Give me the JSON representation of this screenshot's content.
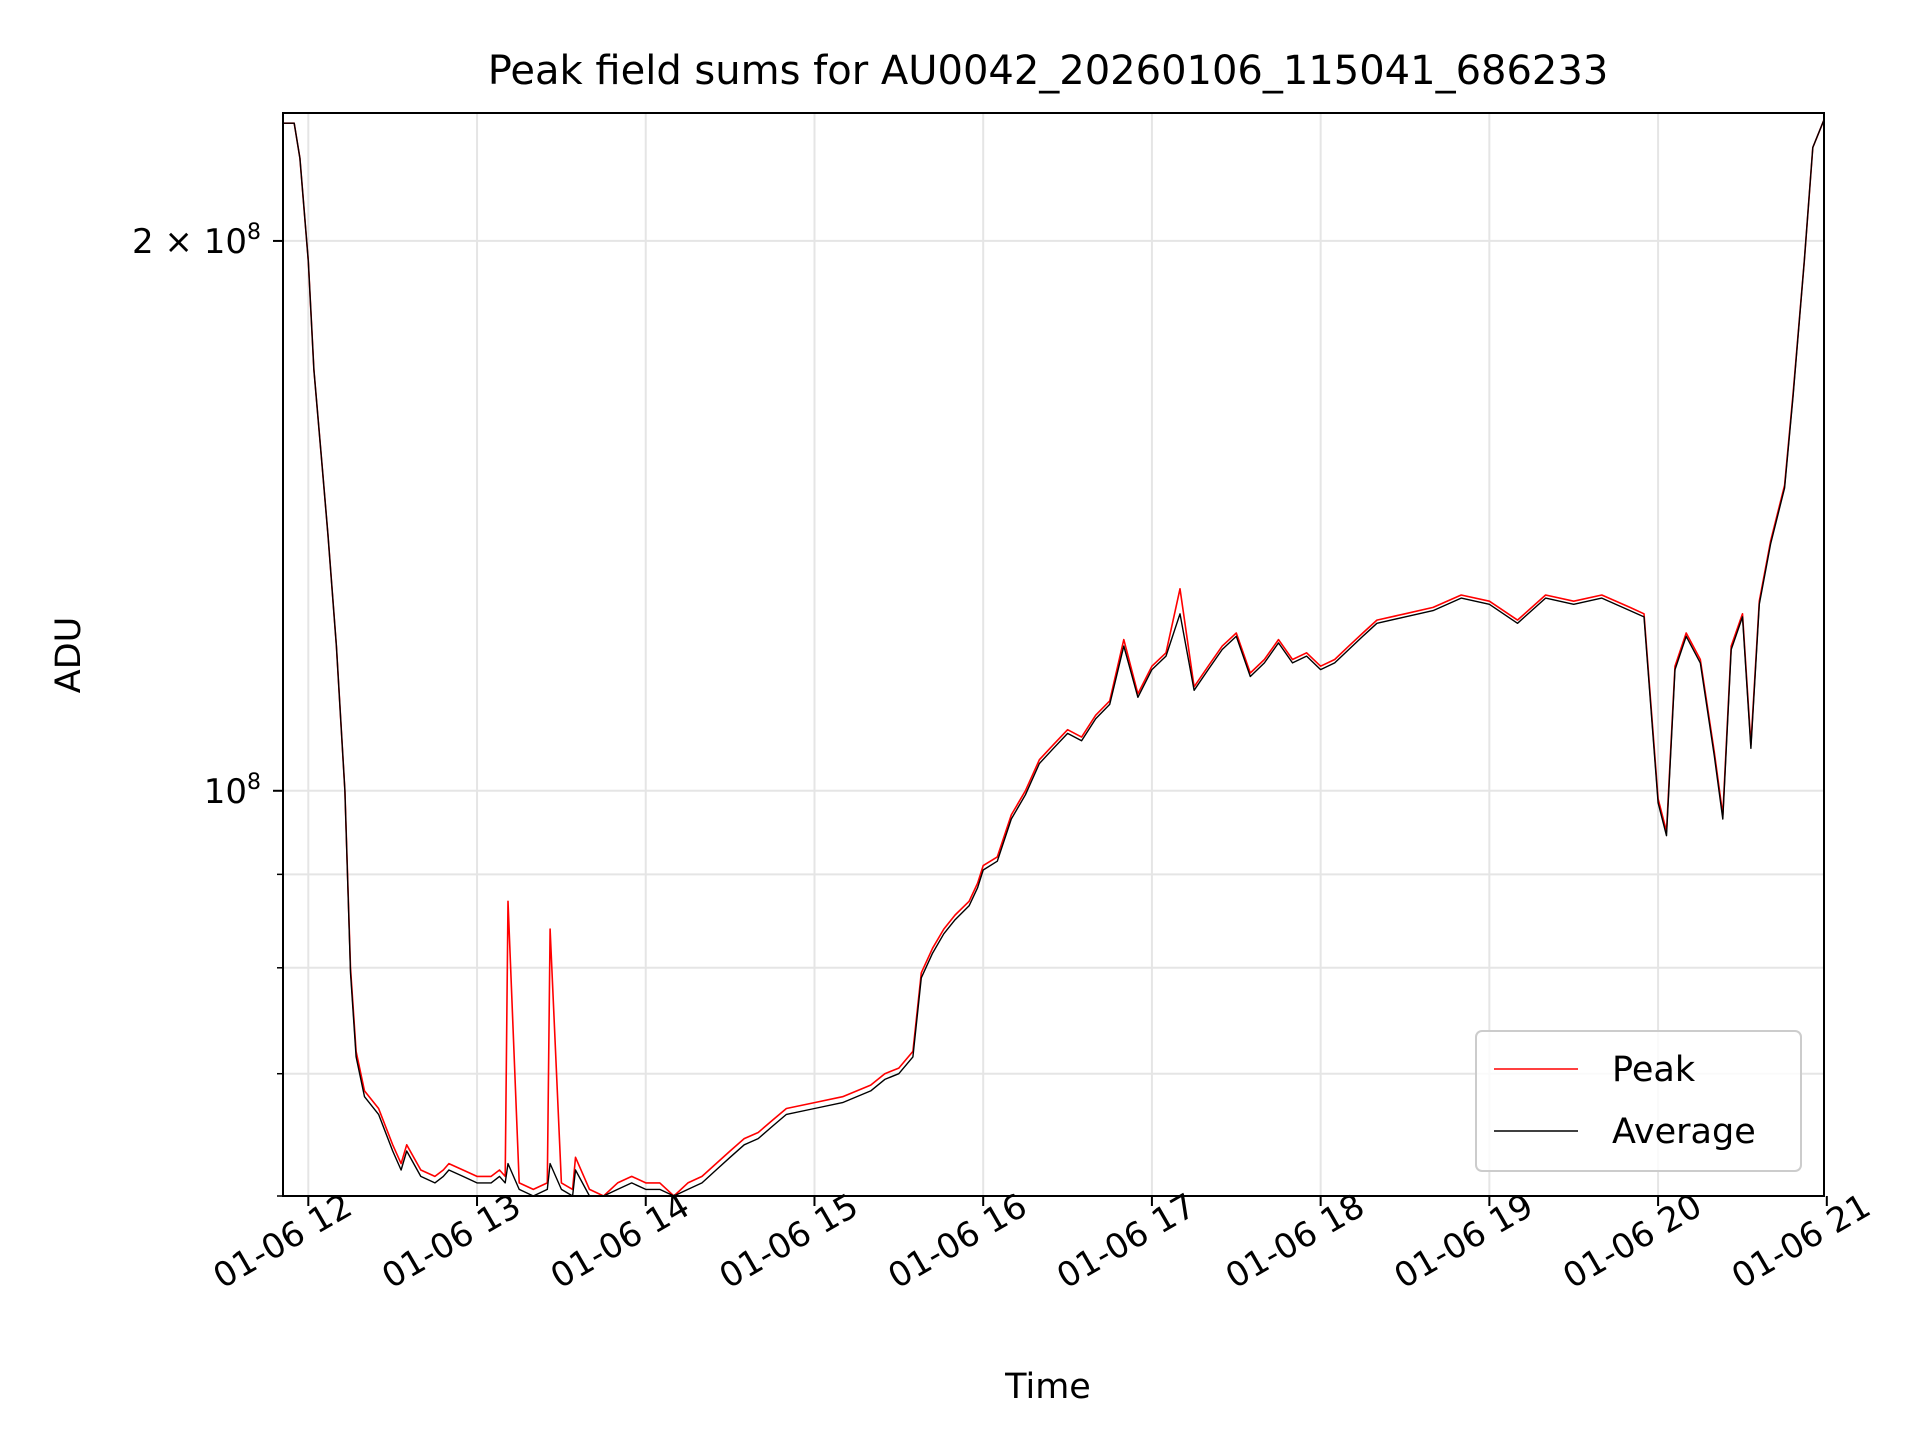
{
  "colors": {
    "peak": "#ff0000",
    "average": "#000000",
    "grid": "#e5e5e5",
    "axes": "#000000",
    "legend_border": "#cccccc"
  },
  "chart_data": {
    "type": "line",
    "title": "Peak field sums for AU0042_20260106_115041_686233",
    "xlabel": "Time",
    "ylabel": "ADU",
    "yscale": "log",
    "grid": true,
    "legend_position": "lower-right",
    "x_range": [
      "01-06 11:51",
      "01-06 20:59"
    ],
    "ylim": [
      60000000,
      235000000
    ],
    "x_ticks": [
      {
        "time": "01-06 12:00",
        "label": "01-06 12"
      },
      {
        "time": "01-06 13:00",
        "label": "01-06 13"
      },
      {
        "time": "01-06 14:00",
        "label": "01-06 14"
      },
      {
        "time": "01-06 15:00",
        "label": "01-06 15"
      },
      {
        "time": "01-06 16:00",
        "label": "01-06 16"
      },
      {
        "time": "01-06 17:00",
        "label": "01-06 17"
      },
      {
        "time": "01-06 18:00",
        "label": "01-06 18"
      },
      {
        "time": "01-06 19:00",
        "label": "01-06 19"
      },
      {
        "time": "01-06 20:00",
        "label": "01-06 20"
      },
      {
        "time": "01-06 21:00",
        "label": "01-06 21"
      }
    ],
    "y_major_ticks": [
      {
        "value": 100000000,
        "base": "10",
        "exp": "8",
        "coef": ""
      },
      {
        "value": 200000000,
        "base": "10",
        "exp": "8",
        "coef": "2 × "
      }
    ],
    "y_minor_ticks": [
      60000000,
      70000000,
      80000000,
      90000000
    ],
    "series": [
      {
        "name": "Peak",
        "color": "#ff0000",
        "x": [
          "01-06 11:51",
          "01-06 11:55",
          "01-06 11:57",
          "01-06 12:00",
          "01-06 12:02",
          "01-06 12:05",
          "01-06 12:07",
          "01-06 12:10",
          "01-06 12:13",
          "01-06 12:15",
          "01-06 12:17",
          "01-06 12:20",
          "01-06 12:25",
          "01-06 12:30",
          "01-06 12:33",
          "01-06 12:35",
          "01-06 12:40",
          "01-06 12:45",
          "01-06 12:48",
          "01-06 12:50",
          "01-06 12:55",
          "01-06 13:00",
          "01-06 13:05",
          "01-06 13:08",
          "01-06 13:10",
          "01-06 13:11",
          "01-06 13:15",
          "01-06 13:20",
          "01-06 13:25",
          "01-06 13:26",
          "01-06 13:30",
          "01-06 13:34",
          "01-06 13:35",
          "01-06 13:40",
          "01-06 13:45",
          "01-06 13:50",
          "01-06 13:55",
          "01-06 14:00",
          "01-06 14:05",
          "01-06 14:10",
          "01-06 14:15",
          "01-06 14:20",
          "01-06 14:25",
          "01-06 14:30",
          "01-06 14:35",
          "01-06 14:40",
          "01-06 14:45",
          "01-06 14:50",
          "01-06 15:00",
          "01-06 15:10",
          "01-06 15:20",
          "01-06 15:25",
          "01-06 15:30",
          "01-06 15:35",
          "01-06 15:38",
          "01-06 15:42",
          "01-06 15:46",
          "01-06 15:50",
          "01-06 15:55",
          "01-06 15:58",
          "01-06 16:00",
          "01-06 16:05",
          "01-06 16:10",
          "01-06 16:15",
          "01-06 16:20",
          "01-06 16:25",
          "01-06 16:30",
          "01-06 16:35",
          "01-06 16:40",
          "01-06 16:45",
          "01-06 16:50",
          "01-06 16:55",
          "01-06 17:00",
          "01-06 17:05",
          "01-06 17:10",
          "01-06 17:15",
          "01-06 17:20",
          "01-06 17:25",
          "01-06 17:30",
          "01-06 17:35",
          "01-06 17:40",
          "01-06 17:45",
          "01-06 17:50",
          "01-06 17:55",
          "01-06 18:00",
          "01-06 18:05",
          "01-06 18:10",
          "01-06 18:15",
          "01-06 18:20",
          "01-06 18:30",
          "01-06 18:40",
          "01-06 18:50",
          "01-06 19:00",
          "01-06 19:10",
          "01-06 19:20",
          "01-06 19:30",
          "01-06 19:40",
          "01-06 19:50",
          "01-06 19:55",
          "01-06 20:00",
          "01-06 20:03",
          "01-06 20:06",
          "01-06 20:10",
          "01-06 20:15",
          "01-06 20:20",
          "01-06 20:23",
          "01-06 20:26",
          "01-06 20:30",
          "01-06 20:33",
          "01-06 20:36",
          "01-06 20:40",
          "01-06 20:45",
          "01-06 20:48",
          "01-06 20:52",
          "01-06 20:55",
          "01-06 20:59"
        ],
        "values": [
          232000000,
          232000000,
          222000000,
          195000000,
          170000000,
          150000000,
          138000000,
          120000000,
          100000000,
          80000000,
          72000000,
          68500000,
          67000000,
          64000000,
          62500000,
          64000000,
          62000000,
          61500000,
          62000000,
          62500000,
          62000000,
          61500000,
          61500000,
          62000000,
          61500000,
          87000000,
          61000000,
          60500000,
          61000000,
          84000000,
          61000000,
          60500000,
          63000000,
          60500000,
          59500000,
          61000000,
          61500000,
          61000000,
          61000000,
          60000000,
          61000000,
          61500000,
          62500000,
          63500000,
          64500000,
          65000000,
          66000000,
          67000000,
          67500000,
          68000000,
          69000000,
          70000000,
          70500000,
          72000000,
          79500000,
          82000000,
          84000000,
          85500000,
          87000000,
          89000000,
          91000000,
          92000000,
          97000000,
          100000000,
          104000000,
          106000000,
          108000000,
          107000000,
          110000000,
          112000000,
          121000000,
          113000000,
          117000000,
          119000000,
          129000000,
          114000000,
          117000000,
          120000000,
          122000000,
          116000000,
          118000000,
          121000000,
          118000000,
          119000000,
          117000000,
          118000000,
          120000000,
          122000000,
          124000000,
          125000000,
          126000000,
          128000000,
          127000000,
          124000000,
          128000000,
          127000000,
          128000000,
          126000000,
          125000000,
          99000000,
          95000000,
          117000000,
          122000000,
          118000000,
          105000000,
          97000000,
          120000000,
          125000000,
          106000000,
          127000000,
          137000000,
          147000000,
          165000000,
          195000000,
          225000000,
          233000000
        ]
      },
      {
        "name": "Average",
        "color": "#000000",
        "x": [
          "01-06 11:51",
          "01-06 11:55",
          "01-06 11:57",
          "01-06 12:00",
          "01-06 12:02",
          "01-06 12:05",
          "01-06 12:07",
          "01-06 12:10",
          "01-06 12:13",
          "01-06 12:15",
          "01-06 12:17",
          "01-06 12:20",
          "01-06 12:25",
          "01-06 12:30",
          "01-06 12:33",
          "01-06 12:35",
          "01-06 12:40",
          "01-06 12:45",
          "01-06 12:48",
          "01-06 12:50",
          "01-06 12:55",
          "01-06 13:00",
          "01-06 13:05",
          "01-06 13:08",
          "01-06 13:10",
          "01-06 13:11",
          "01-06 13:15",
          "01-06 13:20",
          "01-06 13:25",
          "01-06 13:26",
          "01-06 13:30",
          "01-06 13:34",
          "01-06 13:35",
          "01-06 13:40",
          "01-06 13:45",
          "01-06 13:50",
          "01-06 13:55",
          "01-06 14:00",
          "01-06 14:05",
          "01-06 14:10",
          "01-06 14:15",
          "01-06 14:20",
          "01-06 14:25",
          "01-06 14:30",
          "01-06 14:35",
          "01-06 14:40",
          "01-06 14:45",
          "01-06 14:50",
          "01-06 15:00",
          "01-06 15:10",
          "01-06 15:20",
          "01-06 15:25",
          "01-06 15:30",
          "01-06 15:35",
          "01-06 15:38",
          "01-06 15:42",
          "01-06 15:46",
          "01-06 15:50",
          "01-06 15:55",
          "01-06 15:58",
          "01-06 16:00",
          "01-06 16:05",
          "01-06 16:10",
          "01-06 16:15",
          "01-06 16:20",
          "01-06 16:25",
          "01-06 16:30",
          "01-06 16:35",
          "01-06 16:40",
          "01-06 16:45",
          "01-06 16:50",
          "01-06 16:55",
          "01-06 17:00",
          "01-06 17:05",
          "01-06 17:10",
          "01-06 17:15",
          "01-06 17:20",
          "01-06 17:25",
          "01-06 17:30",
          "01-06 17:35",
          "01-06 17:40",
          "01-06 17:45",
          "01-06 17:50",
          "01-06 17:55",
          "01-06 18:00",
          "01-06 18:05",
          "01-06 18:10",
          "01-06 18:15",
          "01-06 18:20",
          "01-06 18:30",
          "01-06 18:40",
          "01-06 18:50",
          "01-06 19:00",
          "01-06 19:10",
          "01-06 19:20",
          "01-06 19:30",
          "01-06 19:40",
          "01-06 19:50",
          "01-06 19:55",
          "01-06 20:00",
          "01-06 20:03",
          "01-06 20:06",
          "01-06 20:10",
          "01-06 20:15",
          "01-06 20:20",
          "01-06 20:23",
          "01-06 20:26",
          "01-06 20:30",
          "01-06 20:33",
          "01-06 20:36",
          "01-06 20:40",
          "01-06 20:45",
          "01-06 20:48",
          "01-06 20:52",
          "01-06 20:55",
          "01-06 20:59"
        ],
        "values": [
          232000000,
          232000000,
          222000000,
          195000000,
          170000000,
          150000000,
          138000000,
          120000000,
          100000000,
          79500000,
          71500000,
          68000000,
          66500000,
          63500000,
          62000000,
          63500000,
          61500000,
          61000000,
          61500000,
          62000000,
          61500000,
          61000000,
          61000000,
          61500000,
          61000000,
          62500000,
          60500000,
          60000000,
          60500000,
          62500000,
          60500000,
          60000000,
          62000000,
          60000000,
          59000000,
          60500000,
          61000000,
          60500000,
          60500000,
          59500000,
          60500000,
          61000000,
          62000000,
          63000000,
          64000000,
          64500000,
          65500000,
          66500000,
          67000000,
          67500000,
          68500000,
          69500000,
          70000000,
          71500000,
          79000000,
          81500000,
          83500000,
          85000000,
          86500000,
          88500000,
          90500000,
          91500000,
          96500000,
          99500000,
          103500000,
          105500000,
          107500000,
          106500000,
          109500000,
          111500000,
          120000000,
          112500000,
          116500000,
          118500000,
          125000000,
          113500000,
          116500000,
          119500000,
          121500000,
          115500000,
          117500000,
          120500000,
          117500000,
          118500000,
          116500000,
          117500000,
          119500000,
          121500000,
          123500000,
          124500000,
          125500000,
          127500000,
          126500000,
          123500000,
          127500000,
          126500000,
          127500000,
          125500000,
          124500000,
          98500000,
          94500000,
          116500000,
          121500000,
          117500000,
          104500000,
          96500000,
          119500000,
          124500000,
          105500000,
          126500000,
          136500000,
          146500000,
          164500000,
          195000000,
          225000000,
          233000000
        ]
      }
    ]
  }
}
